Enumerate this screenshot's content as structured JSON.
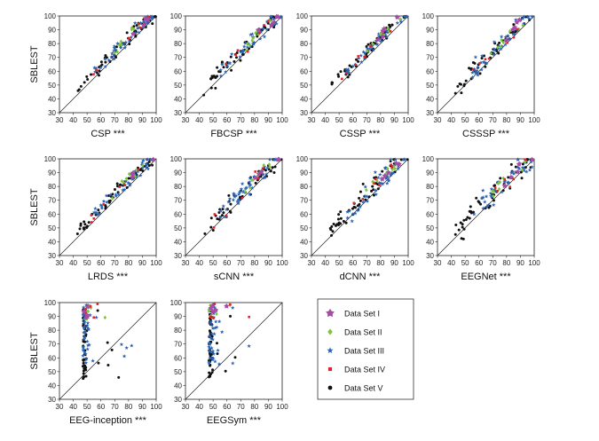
{
  "chart_data": [
    {
      "type": "scatter",
      "xlabel": "CSP ***",
      "ylabel": "SBLEST"
    },
    {
      "type": "scatter",
      "xlabel": "FBCSP ***",
      "ylabel": ""
    },
    {
      "type": "scatter",
      "xlabel": "CSSP ***",
      "ylabel": ""
    },
    {
      "type": "scatter",
      "xlabel": "CSSSP ***",
      "ylabel": ""
    },
    {
      "type": "scatter",
      "xlabel": "LRDS ***",
      "ylabel": "SBLEST"
    },
    {
      "type": "scatter",
      "xlabel": "sCNN ***",
      "ylabel": ""
    },
    {
      "type": "scatter",
      "xlabel": "dCNN ***",
      "ylabel": ""
    },
    {
      "type": "scatter",
      "xlabel": "EEGNet ***",
      "ylabel": ""
    },
    {
      "type": "scatter",
      "xlabel": "EEG-inception ***",
      "ylabel": "SBLEST"
    },
    {
      "type": "scatter",
      "xlabel": "EEGSym ***",
      "ylabel": ""
    }
  ],
  "axes": {
    "xlim": [
      30,
      100
    ],
    "ylim": [
      30,
      100
    ],
    "ticks": [
      30,
      40,
      50,
      60,
      70,
      80,
      90,
      100
    ],
    "diagonal_reference_line": true
  },
  "legend": {
    "placement": "bottom-right",
    "items": [
      {
        "label": "Data Set I",
        "marker": "asterisk",
        "color": "#a64ca6"
      },
      {
        "label": "Data Set II",
        "marker": "diamond",
        "color": "#7dc43a"
      },
      {
        "label": "Data Set III",
        "marker": "star",
        "color": "#2a62b0"
      },
      {
        "label": "Data Set IV",
        "marker": "square",
        "color": "#e0242b"
      },
      {
        "label": "Data Set V",
        "marker": "circle",
        "color": "#111111"
      }
    ]
  }
}
